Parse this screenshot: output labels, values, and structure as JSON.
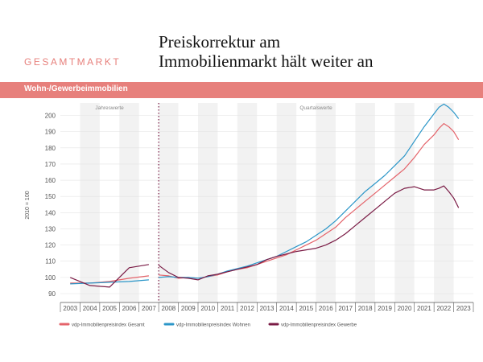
{
  "header": {
    "section_label": "GESAMTMARKT",
    "title_line1": "Preiskorrektur am",
    "title_line2": "Immobilienmarkt hält weiter an",
    "band_label": "Wohn-/Gewerbeimmobilien"
  },
  "colors": {
    "accent": "#e7807c",
    "gesamt": "#e4636a",
    "wohnen": "#2b96c8",
    "gewerbe": "#7a1b45"
  },
  "chart_data": {
    "type": "line",
    "title": "",
    "xlabel": "",
    "ylabel": "2010 = 100",
    "ylim": [
      90,
      210
    ],
    "yticks": [
      90,
      100,
      110,
      120,
      130,
      140,
      150,
      160,
      170,
      180,
      190,
      200
    ],
    "xlim": [
      2003,
      2024
    ],
    "x_tick_labels": [
      "2003",
      "2004",
      "2005",
      "2006",
      "2007",
      "2008",
      "2009",
      "2010",
      "2011",
      "2012",
      "2013",
      "2014",
      "2015",
      "2016",
      "2017",
      "2018",
      "2019",
      "2020",
      "2021",
      "2022",
      "2023"
    ],
    "period_labels": {
      "annual": "Jahreswerte",
      "quarterly": "Quartalswerte"
    },
    "grid": "alternating vertical bands per year",
    "legend_position": "bottom",
    "series": [
      {
        "name": "vdp-Immobilienpreisindex Gesamt",
        "color": "#e4636a",
        "annual": [
          [
            2003,
            96.5
          ],
          [
            2004,
            96.5
          ],
          [
            2005,
            97.5
          ],
          [
            2006,
            99.5
          ],
          [
            2007,
            101
          ]
        ],
        "quarterly": [
          [
            2008.0,
            101.5
          ],
          [
            2008.5,
            101
          ],
          [
            2009.0,
            99.5
          ],
          [
            2009.5,
            100
          ],
          [
            2010.0,
            99.5
          ],
          [
            2010.5,
            100.5
          ],
          [
            2011.0,
            101.5
          ],
          [
            2011.5,
            103.5
          ],
          [
            2012.0,
            105
          ],
          [
            2012.5,
            106
          ],
          [
            2013.0,
            108
          ],
          [
            2013.5,
            110
          ],
          [
            2014.0,
            112
          ],
          [
            2014.5,
            114
          ],
          [
            2015.0,
            117
          ],
          [
            2015.5,
            120
          ],
          [
            2016.0,
            123
          ],
          [
            2016.5,
            127
          ],
          [
            2017.0,
            131
          ],
          [
            2017.5,
            137
          ],
          [
            2018.0,
            142
          ],
          [
            2018.5,
            147
          ],
          [
            2019.0,
            152
          ],
          [
            2019.5,
            157
          ],
          [
            2020.0,
            162
          ],
          [
            2020.5,
            167
          ],
          [
            2021.0,
            174
          ],
          [
            2021.5,
            182
          ],
          [
            2022.0,
            188
          ],
          [
            2022.25,
            192
          ],
          [
            2022.5,
            195
          ],
          [
            2022.75,
            193
          ],
          [
            2023.0,
            190
          ],
          [
            2023.25,
            185
          ]
        ]
      },
      {
        "name": "vdp-Immobilienpreisindex Wohnen",
        "color": "#2b96c8",
        "annual": [
          [
            2003,
            96
          ],
          [
            2004,
            96.5
          ],
          [
            2005,
            97
          ],
          [
            2006,
            97.5
          ],
          [
            2007,
            98.5
          ]
        ],
        "quarterly": [
          [
            2008.0,
            100
          ],
          [
            2008.5,
            100.5
          ],
          [
            2009.0,
            100
          ],
          [
            2009.5,
            100
          ],
          [
            2010.0,
            99.5
          ],
          [
            2010.5,
            100.5
          ],
          [
            2011.0,
            102
          ],
          [
            2011.5,
            104
          ],
          [
            2012.0,
            105.5
          ],
          [
            2012.5,
            107
          ],
          [
            2013.0,
            109
          ],
          [
            2013.5,
            111
          ],
          [
            2014.0,
            113
          ],
          [
            2014.5,
            116
          ],
          [
            2015.0,
            119
          ],
          [
            2015.5,
            122
          ],
          [
            2016.0,
            126
          ],
          [
            2016.5,
            130
          ],
          [
            2017.0,
            135
          ],
          [
            2017.5,
            141
          ],
          [
            2018.0,
            147
          ],
          [
            2018.5,
            153
          ],
          [
            2019.0,
            158
          ],
          [
            2019.5,
            163
          ],
          [
            2020.0,
            169
          ],
          [
            2020.5,
            175
          ],
          [
            2021.0,
            184
          ],
          [
            2021.5,
            193
          ],
          [
            2022.0,
            201
          ],
          [
            2022.25,
            205
          ],
          [
            2022.5,
            207
          ],
          [
            2022.75,
            205
          ],
          [
            2023.0,
            202
          ],
          [
            2023.25,
            198
          ]
        ]
      },
      {
        "name": "vdp-Immobilienpreisindex Gewerbe",
        "color": "#7a1b45",
        "annual": [
          [
            2003,
            100
          ],
          [
            2004,
            95
          ],
          [
            2005,
            94
          ],
          [
            2006,
            106
          ],
          [
            2007,
            108
          ]
        ],
        "quarterly": [
          [
            2008.0,
            107.5
          ],
          [
            2008.5,
            103
          ],
          [
            2009.0,
            100
          ],
          [
            2009.5,
            99.5
          ],
          [
            2010.0,
            98.5
          ],
          [
            2010.5,
            101
          ],
          [
            2011.0,
            102
          ],
          [
            2011.5,
            103.5
          ],
          [
            2012.0,
            105
          ],
          [
            2012.5,
            106.5
          ],
          [
            2013.0,
            108
          ],
          [
            2013.5,
            111
          ],
          [
            2014.0,
            113
          ],
          [
            2014.5,
            114.5
          ],
          [
            2015.0,
            116
          ],
          [
            2015.5,
            117
          ],
          [
            2016.0,
            118
          ],
          [
            2016.5,
            120
          ],
          [
            2017.0,
            123
          ],
          [
            2017.5,
            127
          ],
          [
            2018.0,
            132
          ],
          [
            2018.5,
            137
          ],
          [
            2019.0,
            142
          ],
          [
            2019.5,
            147
          ],
          [
            2020.0,
            152
          ],
          [
            2020.5,
            155
          ],
          [
            2021.0,
            156
          ],
          [
            2021.5,
            154
          ],
          [
            2022.0,
            154
          ],
          [
            2022.25,
            155
          ],
          [
            2022.5,
            156.5
          ],
          [
            2022.75,
            153
          ],
          [
            2023.0,
            149
          ],
          [
            2023.25,
            143
          ]
        ]
      }
    ]
  }
}
